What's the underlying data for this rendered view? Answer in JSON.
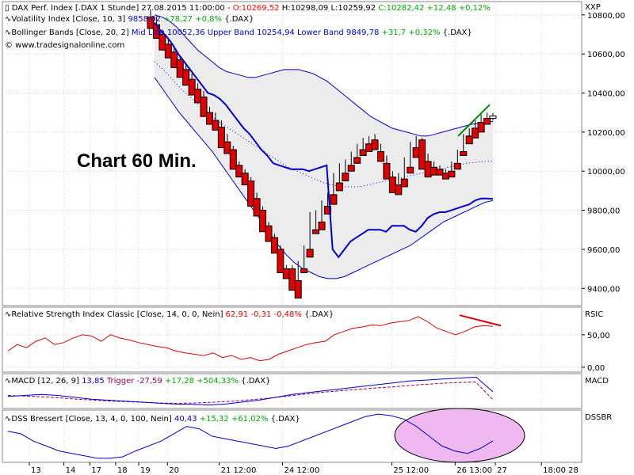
{
  "main_panel": {
    "headers": [
      {
        "prefix": "DAX Perf. Index [.DAX  1 Stunde] 27.08.2015 11:00:00 - ",
        "o": "O:10269,52",
        "h": " H:10298,09 L:10259,92 ",
        "c": "C:10282,42 +12,48 +0,12%"
      },
      {
        "prefix": "Volatility Index [Close, 10, 3] ",
        "value": "9858,02",
        "change": " +78,27 +0,8%",
        "suffix": " {.DAX}"
      },
      {
        "prefix": "Bollinger Bands [Close, 20, 2] ",
        "value": "Mid Line 10052,36 Upper Band 10254,94 Lower Band 9849,78",
        "change": " +31,7 +0,32%",
        "suffix": " {.DAX}"
      }
    ],
    "credit": "© www.tradesignalonline.com",
    "annotation": "Chart 60 Min.",
    "axis_title": "XXP",
    "y_ticks": [
      "10800,00",
      "10600,00",
      "10400,00",
      "10200,00",
      "10000,00",
      "9800,00",
      "9600,00",
      "9400,00"
    ]
  },
  "rsi_panel": {
    "header": {
      "prefix": "Relative Strength Index Classic [Close, 14, 0, 0, Nein] ",
      "value": "62,91 -0,31 -0,48%",
      "suffix": " {.DAX}"
    },
    "axis_title": "RSIC",
    "y_ticks": [
      "50,00",
      "0,00"
    ]
  },
  "macd_panel": {
    "header": {
      "prefix": "MACD [12, 26, 9] ",
      "value": "13,85",
      "trigger": " Trigger -27,59",
      "change": " +17,28 +504,33%",
      "suffix": " {.DAX}"
    },
    "axis_title": "MACD"
  },
  "dss_panel": {
    "header": {
      "prefix": "DSS Bressert [Close, 13, 4, 0, 100, Nein] ",
      "value": "40,43",
      "change": " +15,32 +61,02%",
      "suffix": " {.DAX}"
    },
    "axis_title": "DSSBR"
  },
  "x_axis_labels": [
    "13",
    "14",
    "17",
    "18",
    "19",
    "20",
    "21 12:00",
    "24 12:00",
    "25 12:00",
    "26 13:00",
    "27",
    "18:00 28"
  ],
  "colors": {
    "up_candle": "#ffffff",
    "down_candle": "#e00000",
    "volatility_line": "#0000cc",
    "bollinger_band": "#0000cc",
    "band_fill": "#ececec",
    "rsi_line": "#dd0000",
    "macd_line": "#0000cc",
    "macd_trigger": "#990066",
    "dss_line": "#0000cc",
    "dss_highlight": "#f0b8f0",
    "trend_up": "#008800",
    "trend_down": "#dd0000",
    "positive": "#00aa00",
    "negative": "#ff0000"
  },
  "chart_data": [
    {
      "type": "candlestick",
      "title": "DAX Perf. Index [.DAX  1 Stunde]",
      "ylim": [
        9320,
        10860
      ],
      "ohlc": [
        [
          10790,
          10830,
          10760,
          10730
        ],
        [
          10750,
          10790,
          10700,
          10680
        ],
        [
          10700,
          10725,
          10650,
          10620
        ],
        [
          10650,
          10680,
          10610,
          10580
        ],
        [
          10610,
          10640,
          10570,
          10530
        ],
        [
          10570,
          10590,
          10520,
          10480
        ],
        [
          10520,
          10550,
          10470,
          10440
        ],
        [
          10470,
          10500,
          10420,
          10390
        ],
        [
          10420,
          10450,
          10380,
          10350
        ],
        [
          10380,
          10410,
          10300,
          10280
        ],
        [
          10300,
          10330,
          10260,
          10240
        ],
        [
          10260,
          10300,
          10225,
          10210
        ],
        [
          10225,
          10260,
          10150,
          10120
        ],
        [
          10150,
          10190,
          10110,
          10090
        ],
        [
          10110,
          10130,
          10030,
          10010
        ],
        [
          10030,
          10050,
          9990,
          9970
        ],
        [
          9990,
          10010,
          9950,
          9930
        ],
        [
          9950,
          9970,
          9860,
          9820
        ],
        [
          9860,
          9890,
          9800,
          9770
        ],
        [
          9800,
          9820,
          9720,
          9690
        ],
        [
          9720,
          9740,
          9660,
          9640
        ],
        [
          9660,
          9680,
          9600,
          9580
        ],
        [
          9600,
          9620,
          9500,
          9480
        ],
        [
          9500,
          9520,
          9460,
          9450
        ],
        [
          9500,
          9520,
          9400,
          9390
        ],
        [
          9440,
          9540,
          9360,
          9350
        ],
        [
          9500,
          9620,
          9490,
          9480
        ],
        [
          9600,
          9790,
          9580,
          9560
        ],
        [
          9700,
          9800,
          9690,
          9680
        ],
        [
          9740,
          9850,
          9720,
          9700
        ],
        [
          9820,
          9890,
          9800,
          9780
        ],
        [
          9880,
          9990,
          9850,
          9830
        ],
        [
          9940,
          10040,
          9920,
          9900
        ],
        [
          9990,
          10060,
          9970,
          9950
        ],
        [
          10030,
          10100,
          10010,
          10000
        ],
        [
          10070,
          10140,
          10050,
          10040
        ],
        [
          10110,
          10170,
          10090,
          10080
        ],
        [
          10140,
          10180,
          10110,
          10100
        ],
        [
          10160,
          10190,
          10120,
          10110
        ],
        [
          10100,
          10140,
          10060,
          10050
        ],
        [
          10040,
          10080,
          9980,
          9960
        ],
        [
          9970,
          10000,
          9910,
          9890
        ],
        [
          9930,
          9990,
          9900,
          9880
        ],
        [
          9960,
          10070,
          9940,
          9920
        ],
        [
          10020,
          10150,
          10000,
          9990
        ],
        [
          10120,
          10180,
          10090,
          10070
        ],
        [
          10160,
          10170,
          10030,
          10010
        ],
        [
          10050,
          10090,
          9990,
          9970
        ],
        [
          10020,
          10050,
          9990,
          9980
        ],
        [
          10010,
          10030,
          9990,
          9980
        ],
        [
          9990,
          10010,
          9970,
          9960
        ],
        [
          10000,
          10050,
          9980,
          9970
        ],
        [
          10040,
          10110,
          10020,
          10010
        ],
        [
          10100,
          10190,
          10090,
          10080
        ],
        [
          10180,
          10220,
          10150,
          10140
        ],
        [
          10220,
          10260,
          10190,
          10170
        ],
        [
          10250,
          10290,
          10220,
          10200
        ],
        [
          10270,
          10300,
          10250,
          10240
        ],
        [
          10270,
          10298.09,
          10259.92,
          10282.42
        ]
      ],
      "series": [
        {
          "name": "Volatility Index",
          "values": [
            10760,
            10720,
            10690,
            10650,
            10600,
            10560,
            10520,
            10480,
            10440,
            10400,
            10390,
            10370,
            10340,
            10300,
            10260,
            10220,
            10190,
            10150,
            10110,
            10080,
            10040,
            10030,
            10020,
            10010,
            10010,
            10010,
            10000,
            10010,
            10020,
            10030,
            9600,
            9560,
            9600,
            9640,
            9660,
            9680,
            9700,
            9700,
            9700,
            9690,
            9720,
            9720,
            9720,
            9700,
            9690,
            9720,
            9760,
            9780,
            9790,
            9790,
            9800,
            9810,
            9820,
            9830,
            9850,
            9860,
            9860,
            9858.02
          ]
        },
        {
          "name": "Upper Band",
          "values": [
            10800,
            10790,
            10770,
            10740,
            10700,
            10660,
            10620,
            10590,
            10560,
            10530,
            10510,
            10500,
            10490,
            10480,
            10480,
            10490,
            10500,
            10510,
            10520,
            10520,
            10520,
            10510,
            10500,
            10480,
            10460,
            10430,
            10400,
            10370,
            10340,
            10310,
            10280,
            10260,
            10240,
            10220,
            10210,
            10200,
            10190,
            10180,
            10180,
            10190,
            10200,
            10210,
            10220,
            10230,
            10240,
            10245,
            10250,
            10254.94
          ]
        },
        {
          "name": "Mid Line",
          "values": [
            10560,
            10520,
            10470,
            10420,
            10380,
            10340,
            10300,
            10260,
            10230,
            10200,
            10170,
            10140,
            10110,
            10080,
            10050,
            10020,
            10000,
            9980,
            9960,
            9940,
            9930,
            9920,
            9920,
            9920,
            9930,
            9940,
            9950,
            9960,
            9970,
            9980,
            9990,
            10000,
            10010,
            10020,
            10030,
            10040,
            10045,
            10050,
            10052.36
          ]
        },
        {
          "name": "Lower Band",
          "values": [
            10480,
            10420,
            10360,
            10300,
            10250,
            10200,
            10150,
            10100,
            10040,
            9980,
            9920,
            9860,
            9800,
            9740,
            9680,
            9620,
            9570,
            9530,
            9500,
            9480,
            9460,
            9450,
            9450,
            9460,
            9480,
            9500,
            9520,
            9540,
            9560,
            9580,
            9600,
            9620,
            9650,
            9680,
            9710,
            9740,
            9760,
            9780,
            9800,
            9820,
            9840,
            9849.78
          ]
        }
      ]
    },
    {
      "type": "line",
      "title": "Relative Strength Index Classic",
      "ylim": [
        -5,
        90
      ],
      "series": [
        {
          "name": "Relative Strength Index Classic",
          "values": [
            25,
            35,
            30,
            40,
            45,
            35,
            38,
            45,
            50,
            48,
            40,
            50,
            45,
            42,
            38,
            35,
            32,
            30,
            25,
            22,
            20,
            18,
            22,
            15,
            18,
            12,
            15,
            10,
            12,
            20,
            25,
            30,
            35,
            38,
            40,
            50,
            55,
            60,
            62,
            65,
            64,
            68,
            70,
            72,
            78,
            70,
            60,
            55,
            50,
            55,
            62,
            64,
            62.91
          ]
        }
      ]
    },
    {
      "type": "line",
      "title": "MACD [12, 26, 9]",
      "series": [
        {
          "name": "MACD",
          "values": [
            -10,
            -5,
            0,
            -5,
            -15,
            -25,
            -30,
            -35,
            -40,
            -45,
            -50,
            -52,
            -55,
            -50,
            -40,
            -30,
            -15,
            0,
            10,
            20,
            30,
            40,
            50,
            60,
            70,
            75,
            80,
            85,
            90,
            13.85
          ]
        },
        {
          "name": "Trigger",
          "values": [
            -5,
            -8,
            -12,
            -18,
            -25,
            -30,
            -35,
            -38,
            -42,
            -45,
            -46,
            -44,
            -40,
            -35,
            -28,
            -20,
            -10,
            0,
            10,
            18,
            25,
            32,
            38,
            45,
            52,
            58,
            62,
            65,
            -27.59
          ]
        }
      ]
    },
    {
      "type": "line",
      "title": "DSS Bressert [Close, 13, 4, 0, 100, Nein]",
      "ylim": [
        0,
        100
      ],
      "series": [
        {
          "name": "DSS Bressert",
          "values": [
            60,
            55,
            40,
            30,
            20,
            15,
            10,
            5,
            5,
            8,
            20,
            30,
            40,
            55,
            70,
            65,
            50,
            45,
            40,
            35,
            30,
            25,
            30,
            40,
            50,
            60,
            70,
            80,
            90,
            95,
            92,
            85,
            70,
            50,
            30,
            20,
            15,
            25,
            40.43
          ]
        }
      ]
    }
  ]
}
